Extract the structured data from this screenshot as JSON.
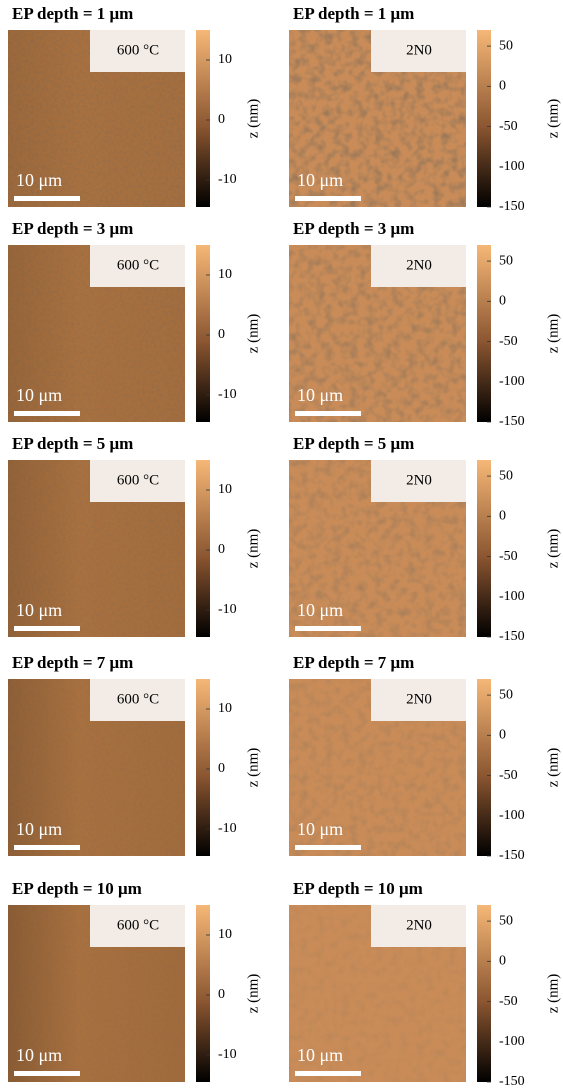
{
  "panels": [
    {
      "title": "EP depth = 1 μm",
      "left": {
        "label": "600 °C",
        "scale_bar": "10 μm"
      },
      "right": {
        "label": "2N0",
        "scale_bar": "10 μm"
      }
    },
    {
      "title": "EP depth = 3 μm",
      "left": {
        "label": "600 °C",
        "scale_bar": "10 μm"
      },
      "right": {
        "label": "2N0",
        "scale_bar": "10 μm"
      }
    },
    {
      "title": "EP depth = 5 μm",
      "left": {
        "label": "600 °C",
        "scale_bar": "10 μm"
      },
      "right": {
        "label": "2N0",
        "scale_bar": "10 μm"
      }
    },
    {
      "title": "EP depth = 7 μm",
      "left": {
        "label": "600 °C",
        "scale_bar": "10 μm"
      },
      "right": {
        "label": "2N0",
        "scale_bar": "10 μm"
      }
    },
    {
      "title": "EP depth = 10 μm",
      "left": {
        "label": "600 °C",
        "scale_bar": "10 μm"
      },
      "right": {
        "label": "2N0",
        "scale_bar": "10 μm"
      }
    }
  ],
  "colorbars": {
    "left": {
      "label": "z (nm)",
      "lim": [
        -14.5,
        15
      ],
      "ticks": [
        10,
        0,
        -10
      ]
    },
    "right": {
      "label": "z (nm)",
      "lim": [
        -150,
        70
      ],
      "ticks": [
        50,
        0,
        -50,
        -100,
        -150
      ]
    }
  }
}
